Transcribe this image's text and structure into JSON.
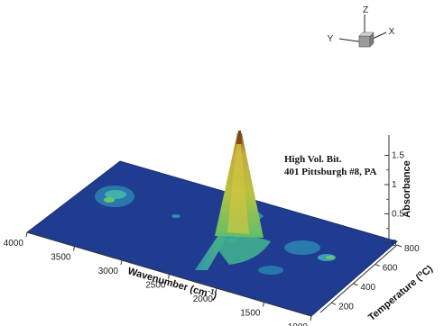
{
  "chart_data": {
    "type": "surface3d",
    "annotation_lines": [
      "High Vol. Bit.",
      "401 Pittsburgh #8, PA"
    ],
    "axes": {
      "x": {
        "label": "Wavenumber (cm",
        "label_sup": "-1",
        "label_close": ")",
        "ticks": [
          4000,
          3500,
          3000,
          2500,
          2000,
          1500,
          1000
        ]
      },
      "y": {
        "label": "Temperature (",
        "label_sup": "o",
        "label_close": "C)",
        "ticks": [
          200,
          400,
          600,
          800
        ]
      },
      "z": {
        "label": "Absorbance",
        "ticks": [
          0,
          0.5,
          1,
          1.5
        ]
      }
    },
    "triad": {
      "x": "X",
      "y": "Y",
      "z": "Z"
    },
    "colors": {
      "base": "#1e3a8f",
      "low": "#2fa3b8",
      "mid": "#6fc36a",
      "high": "#c8c23a",
      "peak": "#b07a2a"
    },
    "peak": {
      "wavenumber": 2050,
      "temperature": 450,
      "absorbance": 1.6
    }
  }
}
